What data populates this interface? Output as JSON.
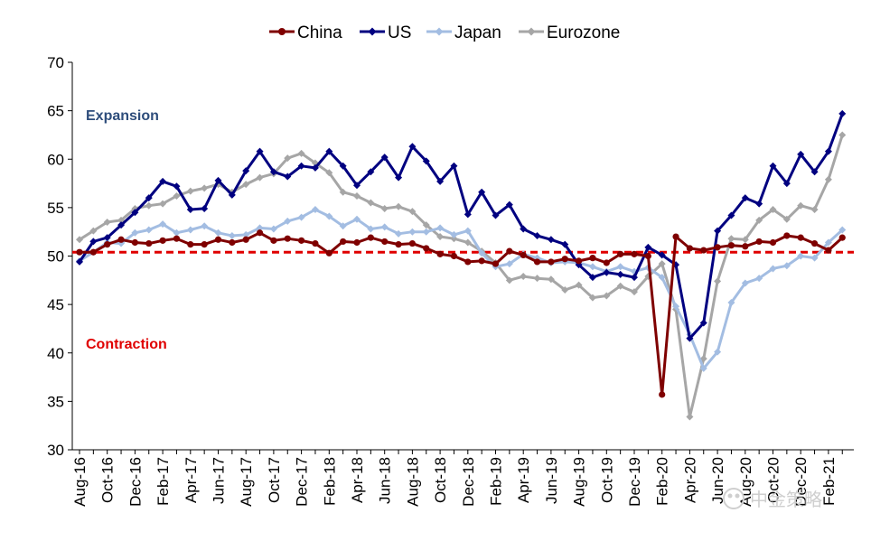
{
  "chart_data": {
    "type": "line",
    "title": "",
    "xlabel": "",
    "ylabel": "",
    "ylim": [
      30,
      70
    ],
    "yticks": [
      30,
      35,
      40,
      45,
      50,
      55,
      60,
      65,
      70
    ],
    "legend_position": "top-center",
    "grid": false,
    "x": [
      "Aug-16",
      "Sep-16",
      "Oct-16",
      "Nov-16",
      "Dec-16",
      "Jan-17",
      "Feb-17",
      "Mar-17",
      "Apr-17",
      "May-17",
      "Jun-17",
      "Jul-17",
      "Aug-17",
      "Sep-17",
      "Oct-17",
      "Nov-17",
      "Dec-17",
      "Jan-18",
      "Feb-18",
      "Mar-18",
      "Apr-18",
      "May-18",
      "Jun-18",
      "Jul-18",
      "Aug-18",
      "Sep-18",
      "Oct-18",
      "Nov-18",
      "Dec-18",
      "Jan-19",
      "Feb-19",
      "Mar-19",
      "Apr-19",
      "May-19",
      "Jun-19",
      "Jul-19",
      "Aug-19",
      "Sep-19",
      "Oct-19",
      "Nov-19",
      "Dec-19",
      "Jan-20",
      "Feb-20",
      "Mar-20",
      "Apr-20",
      "May-20",
      "Jun-20",
      "Jul-20",
      "Aug-20",
      "Sep-20",
      "Oct-20",
      "Nov-20",
      "Dec-20",
      "Jan-21",
      "Feb-21",
      "Mar-21"
    ],
    "xtick_labels": [
      "Aug-16",
      "Oct-16",
      "Dec-16",
      "Feb-17",
      "Apr-17",
      "Jun-17",
      "Aug-17",
      "Oct-17",
      "Dec-17",
      "Feb-18",
      "Apr-18",
      "Jun-18",
      "Aug-18",
      "Oct-18",
      "Dec-18",
      "Feb-19",
      "Apr-19",
      "Jun-19",
      "Aug-19",
      "Oct-19",
      "Dec-19",
      "Feb-20",
      "Apr-20",
      "Jun-20",
      "Aug-20",
      "Oct-20",
      "Dec-20",
      "Feb-21"
    ],
    "series": [
      {
        "name": "China",
        "color": "#7f0000",
        "marker": "circle",
        "values": [
          50.4,
          50.4,
          51.2,
          51.7,
          51.4,
          51.3,
          51.6,
          51.8,
          51.2,
          51.2,
          51.7,
          51.4,
          51.7,
          52.4,
          51.6,
          51.8,
          51.6,
          51.3,
          50.3,
          51.5,
          51.4,
          51.9,
          51.5,
          51.2,
          51.3,
          50.8,
          50.2,
          50.0,
          49.4,
          49.5,
          49.2,
          50.5,
          50.1,
          49.4,
          49.4,
          49.7,
          49.5,
          49.8,
          49.3,
          50.2,
          50.2,
          50.0,
          35.7,
          52.0,
          50.8,
          50.6,
          50.9,
          51.1,
          51.0,
          51.5,
          51.4,
          52.1,
          51.9,
          51.3,
          50.6,
          51.9
        ]
      },
      {
        "name": "US",
        "color": "#000080",
        "marker": "diamond",
        "values": [
          49.4,
          51.5,
          51.9,
          53.2,
          54.5,
          56.0,
          57.7,
          57.2,
          54.8,
          54.9,
          57.8,
          56.3,
          58.8,
          60.8,
          58.7,
          58.2,
          59.3,
          59.1,
          60.8,
          59.3,
          57.3,
          58.7,
          60.2,
          58.1,
          61.3,
          59.8,
          57.7,
          59.3,
          54.3,
          56.6,
          54.2,
          55.3,
          52.8,
          52.1,
          51.7,
          51.2,
          49.1,
          47.8,
          48.3,
          48.1,
          47.8,
          50.9,
          50.1,
          49.1,
          41.5,
          43.1,
          52.6,
          54.2,
          56.0,
          55.4,
          59.3,
          57.5,
          60.5,
          58.7,
          60.8,
          64.7
        ]
      },
      {
        "name": "Japan",
        "color": "#a3bde2",
        "marker": "diamond",
        "values": [
          49.5,
          50.4,
          51.4,
          51.3,
          52.4,
          52.7,
          53.3,
          52.4,
          52.7,
          53.1,
          52.4,
          52.1,
          52.2,
          52.9,
          52.8,
          53.6,
          54.0,
          54.8,
          54.1,
          53.1,
          53.8,
          52.8,
          53.0,
          52.3,
          52.5,
          52.5,
          52.9,
          52.2,
          52.6,
          50.3,
          48.9,
          49.2,
          50.2,
          49.8,
          49.3,
          49.4,
          49.3,
          48.9,
          48.4,
          48.9,
          48.4,
          48.8,
          47.8,
          44.8,
          41.9,
          38.4,
          40.1,
          45.2,
          47.2,
          47.7,
          48.7,
          49.0,
          50.0,
          49.8,
          51.4,
          52.7
        ]
      },
      {
        "name": "Eurozone",
        "color": "#a6a6a6",
        "marker": "diamond",
        "values": [
          51.7,
          52.6,
          53.5,
          53.7,
          54.9,
          55.2,
          55.4,
          56.2,
          56.7,
          57.0,
          57.4,
          56.6,
          57.4,
          58.1,
          58.5,
          60.1,
          60.6,
          59.6,
          58.6,
          56.6,
          56.2,
          55.5,
          54.9,
          55.1,
          54.6,
          53.2,
          52.0,
          51.8,
          51.4,
          50.5,
          49.3,
          47.5,
          47.9,
          47.7,
          47.6,
          46.5,
          47.0,
          45.7,
          45.9,
          46.9,
          46.3,
          47.9,
          49.2,
          44.5,
          33.4,
          39.4,
          47.4,
          51.8,
          51.7,
          53.7,
          54.8,
          53.8,
          55.2,
          54.8,
          57.9,
          62.5
        ]
      }
    ],
    "annotations": [
      {
        "text": "Expansion",
        "color": "#2e4d7b"
      },
      {
        "text": "Contraction",
        "color": "#e00000"
      }
    ],
    "reference_line": {
      "y": 50.4,
      "color": "#e00000",
      "style": "dashed"
    },
    "watermark": "中金策略"
  }
}
